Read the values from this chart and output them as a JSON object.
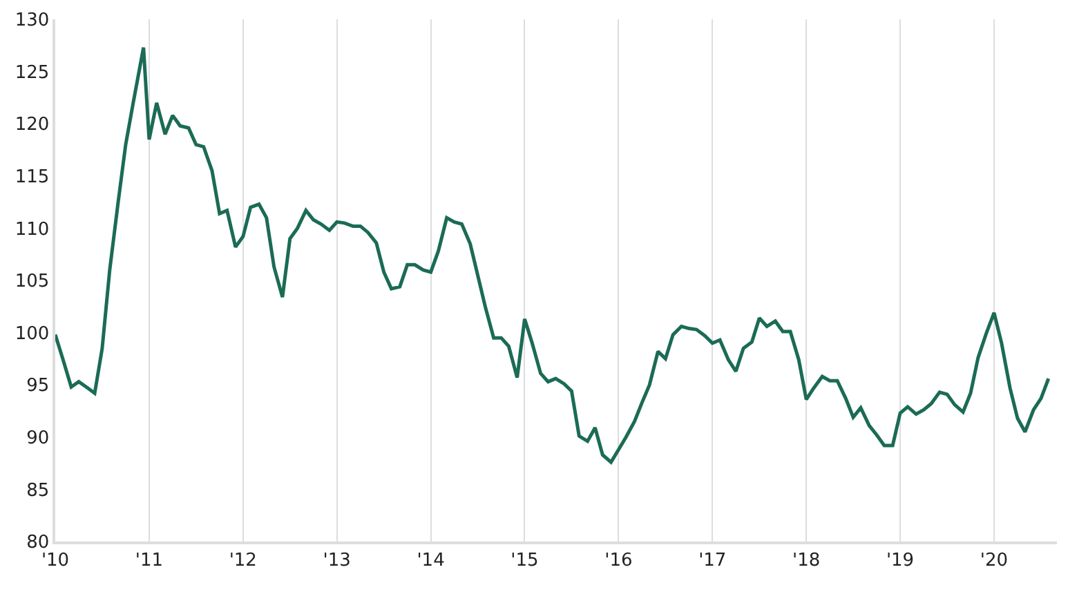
{
  "chart_data": {
    "type": "line",
    "color": "#1b6b55",
    "grid": "x",
    "marker": "none",
    "line_style": "solid",
    "x": [
      2010.0,
      2010.08,
      2010.17,
      2010.25,
      2010.33,
      2010.42,
      2010.5,
      2010.58,
      2010.67,
      2010.75,
      2010.83,
      2010.94,
      2011.0,
      2011.08,
      2011.17,
      2011.25,
      2011.33,
      2011.42,
      2011.5,
      2011.58,
      2011.67,
      2011.75,
      2011.83,
      2011.92,
      2012.0,
      2012.08,
      2012.17,
      2012.25,
      2012.33,
      2012.42,
      2012.5,
      2012.58,
      2012.67,
      2012.75,
      2012.83,
      2012.92,
      2013.0,
      2013.08,
      2013.17,
      2013.25,
      2013.33,
      2013.42,
      2013.5,
      2013.58,
      2013.67,
      2013.75,
      2013.83,
      2013.92,
      2014.0,
      2014.08,
      2014.17,
      2014.25,
      2014.33,
      2014.42,
      2014.5,
      2014.58,
      2014.67,
      2014.75,
      2014.83,
      2014.92,
      2015.0,
      2015.08,
      2015.17,
      2015.25,
      2015.33,
      2015.42,
      2015.5,
      2015.58,
      2015.67,
      2015.75,
      2015.83,
      2015.92,
      2016.0,
      2016.08,
      2016.17,
      2016.25,
      2016.33,
      2016.42,
      2016.5,
      2016.58,
      2016.67,
      2016.75,
      2016.83,
      2016.92,
      2017.0,
      2017.08,
      2017.17,
      2017.25,
      2017.33,
      2017.42,
      2017.5,
      2017.58,
      2017.67,
      2017.75,
      2017.83,
      2017.92,
      2018.0,
      2018.08,
      2018.17,
      2018.25,
      2018.33,
      2018.42,
      2018.5,
      2018.58,
      2018.67,
      2018.75,
      2018.83,
      2018.92,
      2019.0,
      2019.08,
      2019.17,
      2019.25,
      2019.33,
      2019.42,
      2019.5,
      2019.58,
      2019.67,
      2019.75,
      2019.83,
      2019.92,
      2020.0,
      2020.08,
      2020.17,
      2020.25,
      2020.33,
      2020.42,
      2020.5,
      2020.58
    ],
    "values": [
      99.8,
      97.5,
      94.8,
      95.3,
      94.8,
      94.2,
      98.5,
      106,
      112.5,
      118,
      122,
      127.3,
      118.5,
      122,
      119,
      120.8,
      119.8,
      119.6,
      118,
      117.8,
      115.5,
      111.4,
      111.7,
      108.2,
      109.2,
      112,
      112.3,
      111,
      106.3,
      103.4,
      109,
      110,
      111.7,
      110.8,
      110.4,
      109.8,
      110.6,
      110.5,
      110.2,
      110.2,
      109.6,
      108.6,
      105.8,
      104.2,
      104.4,
      106.5,
      106.5,
      106.0,
      105.8,
      107.8,
      111,
      110.6,
      110.4,
      108.5,
      105.5,
      102.5,
      99.5,
      99.5,
      98.7,
      95.7,
      101.3,
      99,
      96.1,
      95.3,
      95.6,
      95.1,
      94.4,
      90.1,
      89.6,
      90.9,
      88.3,
      87.6,
      88.8,
      90,
      91.5,
      93.3,
      95,
      98.2,
      97.5,
      99.8,
      100.6,
      100.4,
      100.3,
      99.7,
      99,
      99.3,
      97.4,
      96.3,
      98.5,
      99.1,
      101.4,
      100.6,
      101.1,
      100.1,
      100.1,
      97.4,
      93.6,
      94.7,
      95.8,
      95.4,
      95.4,
      93.7,
      91.9,
      92.8,
      91.1,
      90.2,
      89.2,
      89.2,
      92.3,
      92.9,
      92.2,
      92.6,
      93.2,
      94.3,
      94.1,
      93.1,
      92.4,
      94.2,
      97.6,
      100,
      101.9,
      99,
      94.7,
      91.8,
      90.5,
      92.6,
      93.7,
      95.6
    ],
    "xlim": [
      2010,
      2020.67
    ],
    "xticks": [
      {
        "value": 2010,
        "label": "'10"
      },
      {
        "value": 2011,
        "label": "'11"
      },
      {
        "value": 2012,
        "label": "'12"
      },
      {
        "value": 2013,
        "label": "'13"
      },
      {
        "value": 2014,
        "label": "'14"
      },
      {
        "value": 2015,
        "label": "'15"
      },
      {
        "value": 2016,
        "label": "'16"
      },
      {
        "value": 2017,
        "label": "'17"
      },
      {
        "value": 2018,
        "label": "'18"
      },
      {
        "value": 2019,
        "label": "'19"
      },
      {
        "value": 2020,
        "label": "'20"
      }
    ],
    "ylim": [
      80,
      130
    ],
    "yticks": [
      80,
      85,
      90,
      95,
      100,
      105,
      110,
      115,
      120,
      125,
      130
    ]
  }
}
